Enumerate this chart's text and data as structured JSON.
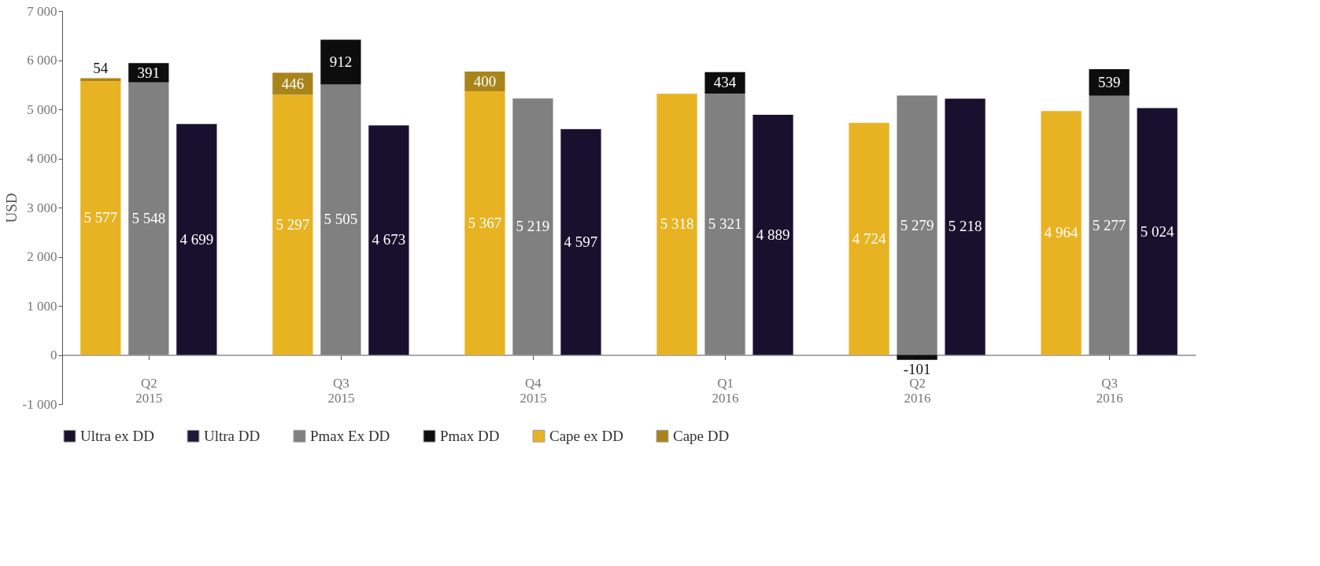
{
  "chart_data": {
    "type": "bar",
    "stacked": true,
    "ylabel": "USD",
    "categories": [
      null,
      "Q2\n2015",
      null,
      null,
      "Q3\n2015",
      null,
      null,
      "Q4\n2015",
      null,
      null,
      "Q1\n2016",
      null,
      null,
      "Q2\n2016",
      null,
      null,
      "Q3\n2016",
      null
    ],
    "series": [
      {
        "name": "Cape ex DD",
        "color": "#e8b323",
        "values": [
          5577,
          null,
          null,
          5297,
          null,
          null,
          5367,
          null,
          null,
          5318,
          null,
          null,
          4724,
          null,
          null,
          4964,
          null,
          null
        ],
        "value_labels": [
          "5 577",
          null,
          null,
          "5 297",
          null,
          null,
          "5 367",
          null,
          null,
          "5 318",
          null,
          null,
          "4 724",
          null,
          null,
          "4 964",
          null,
          null
        ]
      },
      {
        "name": "Cape DD",
        "color": "#a8841a",
        "values": [
          54,
          null,
          null,
          446,
          null,
          null,
          400,
          null,
          null,
          null,
          null,
          null,
          null,
          null,
          null,
          null,
          null,
          null
        ],
        "value_labels": [
          "54",
          null,
          null,
          "446",
          null,
          null,
          "400",
          null,
          null,
          null,
          null,
          null,
          null,
          null,
          null,
          null,
          null,
          null
        ]
      },
      {
        "name": "Pmax Ex DD",
        "color": "#808080",
        "values": [
          null,
          5548,
          null,
          null,
          5505,
          null,
          null,
          5219,
          null,
          null,
          5321,
          null,
          null,
          5279,
          null,
          null,
          5277,
          null
        ],
        "value_labels": [
          null,
          "5 548",
          null,
          null,
          "5 505",
          null,
          null,
          "5 219",
          null,
          null,
          "5 321",
          null,
          null,
          "5 279",
          null,
          null,
          "5 277",
          null
        ]
      },
      {
        "name": "Pmax DD",
        "color": "#0d0d0d",
        "values": [
          null,
          391,
          null,
          null,
          912,
          null,
          null,
          null,
          null,
          null,
          434,
          null,
          null,
          -101,
          null,
          null,
          539,
          null
        ],
        "value_labels": [
          null,
          "391",
          null,
          null,
          "912",
          null,
          null,
          null,
          null,
          null,
          "434",
          null,
          null,
          "-101",
          null,
          null,
          "539",
          null
        ]
      },
      {
        "name": "Ultra ex DD",
        "color": "#18112e",
        "values": [
          null,
          null,
          4699,
          null,
          null,
          4673,
          null,
          null,
          4597,
          null,
          null,
          4889,
          null,
          null,
          5218,
          null,
          null,
          5024
        ],
        "value_labels": [
          null,
          null,
          "4 699",
          null,
          null,
          "4 673",
          null,
          null,
          "4 597",
          null,
          null,
          "4 889",
          null,
          null,
          "5 218",
          null,
          null,
          "5 024"
        ]
      },
      {
        "name": "Ultra DD",
        "color": "#1f1838",
        "values": [
          null,
          null,
          null,
          null,
          null,
          null,
          null,
          null,
          null,
          null,
          null,
          null,
          null,
          null,
          null,
          null,
          null,
          null
        ]
      }
    ],
    "ylim": [
      -1000,
      7000
    ],
    "yticks": [
      {
        "value": -1000,
        "label": "-1 000"
      },
      0,
      {
        "value": 1000,
        "label": "1 000"
      },
      {
        "value": 2000,
        "label": "2 000"
      },
      {
        "value": 3000,
        "label": "3 000"
      },
      {
        "value": 4000,
        "label": "4 000"
      },
      {
        "value": 5000,
        "label": "5 000"
      },
      {
        "value": 6000,
        "label": "6 000"
      },
      {
        "value": 7000,
        "label": "7 000"
      }
    ],
    "grid": false,
    "legend": "bottom"
  }
}
